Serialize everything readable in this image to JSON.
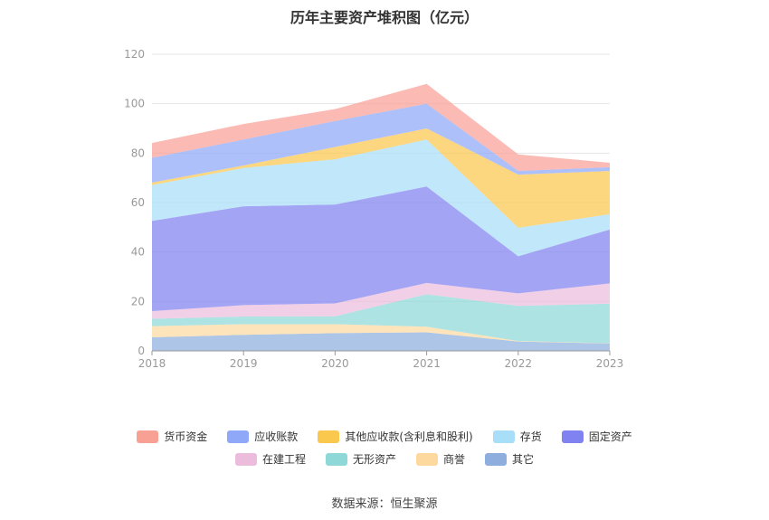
{
  "chart_data": {
    "type": "area",
    "stacked": true,
    "title": "历年主要资产堆积图（亿元）",
    "categories": [
      "2018",
      "2019",
      "2020",
      "2021",
      "2022",
      "2023"
    ],
    "ylim": [
      0,
      120
    ],
    "yticks": [
      "0",
      "20",
      "40",
      "60",
      "80",
      "100",
      "120"
    ],
    "grid": true,
    "legend_position": "bottom",
    "series": [
      {
        "name": "其它",
        "color": "#8eaedd",
        "values": [
          5.5,
          6.5,
          7.2,
          7.5,
          3.8,
          3.0
        ]
      },
      {
        "name": "商誉",
        "color": "#fdd9a0",
        "values": [
          4.5,
          4.3,
          3.6,
          2.3,
          0.2,
          0.1
        ]
      },
      {
        "name": "无形资产",
        "color": "#8ed8d8",
        "values": [
          3.0,
          3.1,
          3.2,
          13.1,
          14.2,
          16.0
        ]
      },
      {
        "name": "在建工程",
        "color": "#ebbcdc",
        "values": [
          3.1,
          4.6,
          5.2,
          4.6,
          5.1,
          8.2
        ]
      },
      {
        "name": "固定资产",
        "color": "#7f82f0",
        "values": [
          36.5,
          40.0,
          40.0,
          39.0,
          15.0,
          21.8
        ]
      },
      {
        "name": "存货",
        "color": "#a8def8",
        "values": [
          14.5,
          15.5,
          18.3,
          19.0,
          11.5,
          6.2
        ]
      },
      {
        "name": "其他应收款(含利息和股利)",
        "color": "#fbc84e",
        "values": [
          1.0,
          1.0,
          5.0,
          4.5,
          21.5,
          17.5
        ]
      },
      {
        "name": "应收账款",
        "color": "#8fa8f8",
        "values": [
          10.0,
          10.5,
          10.5,
          10.0,
          1.5,
          1.5
        ]
      },
      {
        "name": "货币资金",
        "color": "#f9a095",
        "values": [
          6.0,
          6.3,
          4.8,
          8.0,
          6.7,
          1.8
        ]
      }
    ]
  },
  "legend": {
    "row1": [
      "货币资金",
      "应收账款",
      "其他应收款(含利息和股利)",
      "存货",
      "固定资产"
    ],
    "row2": [
      "在建工程",
      "无形资产",
      "商誉",
      "其它"
    ]
  },
  "source": "数据来源：恒生聚源"
}
